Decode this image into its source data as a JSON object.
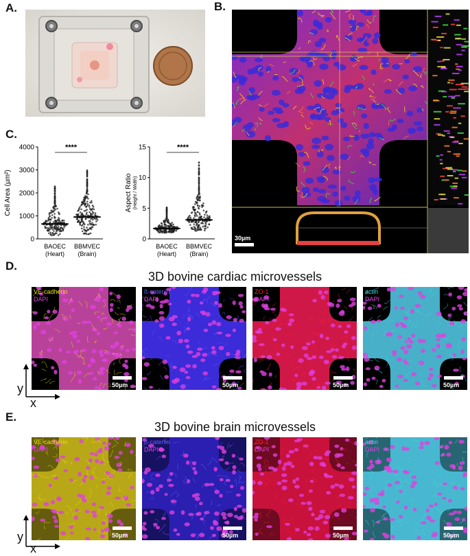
{
  "panels": {
    "a": "A.",
    "b": "B.",
    "c": "C.",
    "d": "D.",
    "e": "E."
  },
  "panel_b": {
    "scalebar": "30µm"
  },
  "chart_data": [
    {
      "type": "scatter",
      "ylabel": "Cell Area (µm²)",
      "ylim": [
        0,
        4000
      ],
      "yticks": [
        0,
        1000,
        2000,
        3000,
        4000
      ],
      "categories": [
        "BAOEC\n(Heart)",
        "BBMVEC\n(Brain)"
      ],
      "category_lines": [
        [
          "BAOEC",
          "(Heart)"
        ],
        [
          "BBMVEC",
          "(Brain)"
        ]
      ],
      "medians": [
        650,
        950
      ],
      "significance": "****",
      "series": [
        {
          "values_range": [
            150,
            2300
          ],
          "median": 650
        },
        {
          "values_range": [
            200,
            3000
          ],
          "median": 950
        }
      ]
    },
    {
      "type": "scatter",
      "ylabel": "Aspect Ratio",
      "ylabel_sub": "(Height / Width)",
      "ylim": [
        0,
        15
      ],
      "yticks": [
        0,
        5,
        10,
        15
      ],
      "categories": [
        "BAOEC\n(Heart)",
        "BBMVEC\n(Brain)"
      ],
      "category_lines": [
        [
          "BAOEC",
          "(Heart)"
        ],
        [
          "BBMVEC",
          "(Brain)"
        ]
      ],
      "medians": [
        1.7,
        3.1
      ],
      "significance": "****",
      "series": [
        {
          "values_range": [
            1.0,
            5.2
          ],
          "median": 1.7
        },
        {
          "values_range": [
            1.2,
            12.5
          ],
          "median": 3.1
        }
      ]
    }
  ],
  "row_d": {
    "title": "3D bovine cardiac microvessels",
    "images": [
      {
        "l1": "VE-cadherin",
        "l2": "DAPI",
        "c1": "#e6e600",
        "c2": "#e040e0",
        "base": "#b8429a"
      },
      {
        "l1": "ß-catenin",
        "l2": "DAPI",
        "c1": "#6060ff",
        "c2": "#e040e0",
        "base": "#3b2bd8"
      },
      {
        "l1": "ZO-1",
        "l2": "DAPI",
        "c1": "#ff2020",
        "c2": "#e040e0",
        "base": "#d01848"
      },
      {
        "l1": "actin",
        "l2": "DAPI",
        "c1": "#40e0e0",
        "c2": "#e040e0",
        "base": "#48b0c8"
      }
    ],
    "scalebar": "50µm"
  },
  "row_e": {
    "title": "3D bovine brain microvessels",
    "images": [
      {
        "l1": "VE-cadherin",
        "l2": "DAPI",
        "c1": "#e6e600",
        "c2": "#e040e0",
        "base": "#b8a818"
      },
      {
        "l1": "ß-catenin",
        "l2": "DAPI",
        "c1": "#6060ff",
        "c2": "#e040e0",
        "base": "#2a1fb0"
      },
      {
        "l1": "ZO-1",
        "l2": "DAPI",
        "c1": "#ff2020",
        "c2": "#e040e0",
        "base": "#c8123c"
      },
      {
        "l1": "actin",
        "l2": "DAPI",
        "c1": "#40e0e0",
        "c2": "#e040e0",
        "base": "#48b8d0"
      }
    ],
    "scalebar": "50µm"
  },
  "axes": {
    "y": "y",
    "x": "x"
  }
}
